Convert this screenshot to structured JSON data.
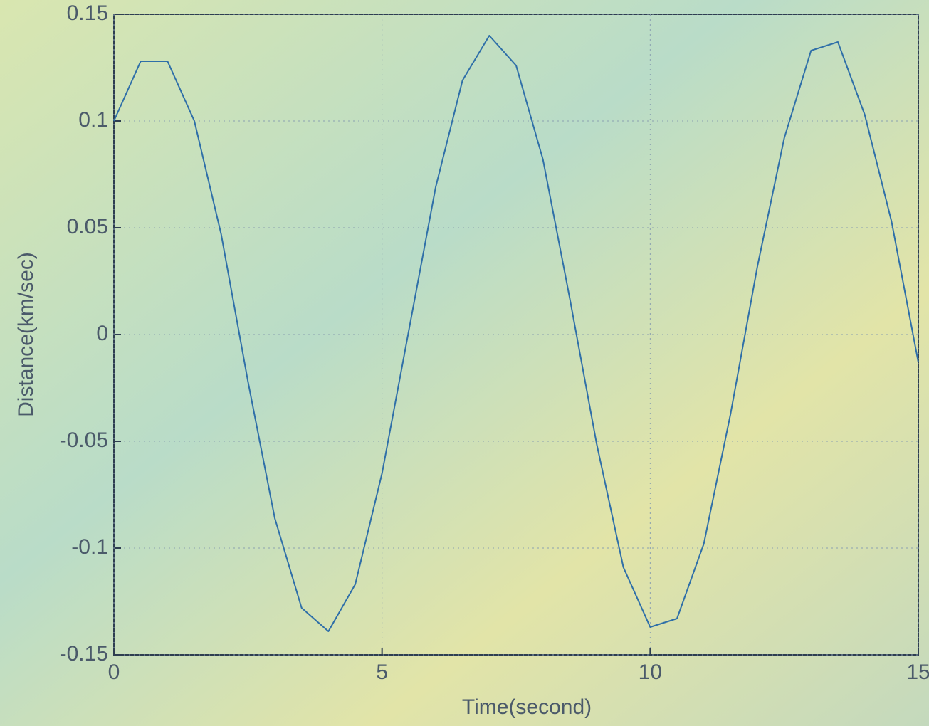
{
  "chart_data": {
    "type": "line",
    "x_label": "Time(second)",
    "y_label": "Distance(km/sec)",
    "x": [
      0,
      0.5,
      1,
      1.5,
      2,
      2.5,
      3,
      3.5,
      4,
      4.5,
      5,
      5.5,
      6,
      6.5,
      7,
      7.5,
      8,
      8.5,
      9,
      9.5,
      10,
      10.5,
      11,
      11.5,
      12,
      12.5,
      13,
      13.5,
      14,
      14.5,
      15
    ],
    "series": [
      {
        "color": "#2f6fa8",
        "values": [
          0.1,
          0.128,
          0.128,
          0.1,
          0.047,
          -0.022,
          -0.086,
          -0.128,
          -0.139,
          -0.117,
          -0.065,
          0.002,
          0.069,
          0.119,
          0.14,
          0.126,
          0.082,
          0.017,
          -0.051,
          -0.109,
          -0.137,
          -0.133,
          -0.098,
          -0.037,
          0.032,
          0.092,
          0.133,
          0.137,
          0.103,
          0.053,
          -0.013
        ]
      }
    ],
    "xlim": [
      0,
      15
    ],
    "xticks": [
      0,
      5,
      10,
      15
    ],
    "ylim": [
      -0.15,
      0.15
    ],
    "yticks": [
      -0.15,
      -0.1,
      -0.05,
      0,
      0.05,
      0.1,
      0.15
    ],
    "grid": true
  }
}
